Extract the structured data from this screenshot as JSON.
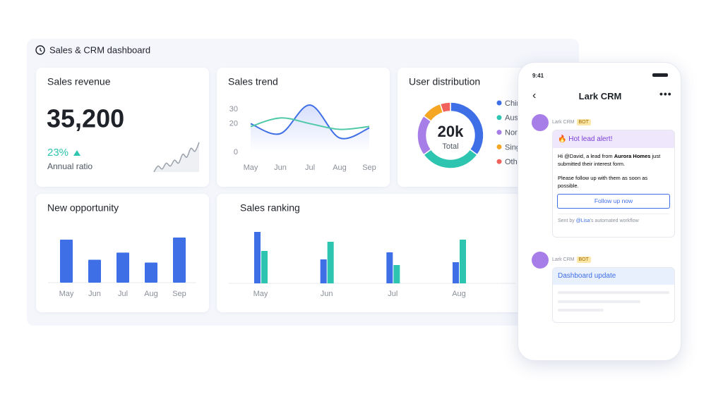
{
  "header": {
    "title": "Sales & CRM dashboard"
  },
  "revenue": {
    "title": "Sales revenue",
    "value": "35,200",
    "ratio": "23%",
    "ratio_label": "Annual ratio"
  },
  "chart_data": [
    {
      "type": "sparkline",
      "color": "#9aa0aa",
      "values": [
        2,
        4,
        3,
        5,
        4,
        6,
        5,
        8,
        7,
        10,
        9,
        12
      ]
    },
    {
      "type": "line",
      "title": "Sales trend",
      "categories": [
        "May",
        "Jun",
        "Jul",
        "Aug",
        "Sep"
      ],
      "ylim": [
        0,
        35
      ],
      "yticks": [
        0,
        20,
        30
      ],
      "series": [
        {
          "color": "#3f6fe6",
          "values": [
            20,
            13,
            33,
            10,
            17
          ]
        },
        {
          "color": "#4fc8a8",
          "values": [
            18,
            24,
            20,
            16,
            18
          ]
        }
      ]
    },
    {
      "type": "pie",
      "title": "User distribution",
      "center_label": "20k",
      "center_sublabel": "Total",
      "categories": [
        "China",
        "Australia",
        "Norway",
        "Singapore",
        "Others"
      ],
      "values": [
        35,
        30,
        20,
        10,
        5
      ],
      "colors": [
        "#3f6fe6",
        "#2ec5b0",
        "#a77de8",
        "#f5a623",
        "#f2625c"
      ]
    },
    {
      "type": "bar",
      "title": "New opportunity",
      "categories": [
        "May",
        "Jun",
        "Jul",
        "Aug",
        "Sep"
      ],
      "color": "#3f6fe6",
      "values": [
        60,
        32,
        42,
        28,
        63
      ]
    },
    {
      "type": "groupbar",
      "title": "Sales ranking",
      "categories": [
        "May",
        "Jun",
        "Jul",
        "Aug"
      ],
      "series": [
        {
          "color": "#3f6fe6",
          "values": [
            73,
            34,
            44,
            30
          ]
        },
        {
          "color": "#2ec5b0",
          "values": [
            46,
            59,
            26,
            62
          ]
        }
      ]
    }
  ],
  "phone": {
    "time": "9:41",
    "title": "Lark CRM",
    "messages": [
      {
        "sender": "Lark CRM",
        "badge": "BOT",
        "card_title": "🔥 Hot lead alert!",
        "text_before": "Hi @David, a lead from ",
        "text_bold": "Aurora Homes",
        "text_after": " just submitted their interest form.",
        "text2": "Please follow up with them as soon as possible.",
        "button": "Follow up now",
        "footer_before": "Sent by ",
        "footer_link": "@Lisa",
        "footer_after": "'s automated workflow"
      },
      {
        "sender": "Lark CRM",
        "badge": "BOT",
        "card_title": "Dashboard update"
      }
    ]
  }
}
